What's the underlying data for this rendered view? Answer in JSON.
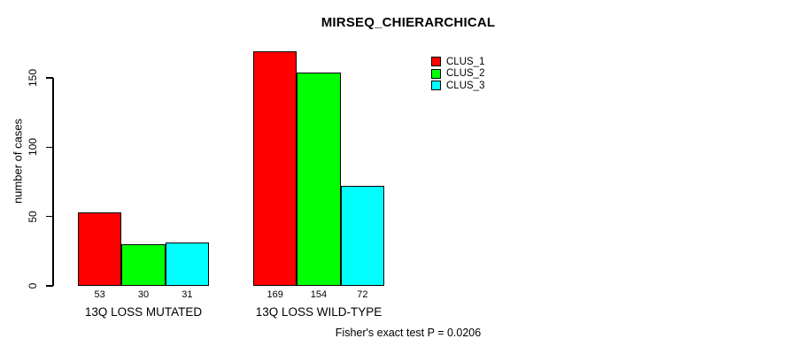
{
  "page": {
    "background": "#ffffff"
  },
  "chart_data": {
    "type": "bar",
    "title": "MIRSEQ_CHIERARCHICAL",
    "ylabel": "number of cases",
    "xlabel": "",
    "categories": [
      "13Q LOSS MUTATED",
      "13Q LOSS WILD-TYPE"
    ],
    "series": [
      {
        "name": "CLUS_1",
        "color": "#ff0000",
        "values": [
          53,
          169
        ]
      },
      {
        "name": "CLUS_2",
        "color": "#00ff00",
        "values": [
          30,
          154
        ]
      },
      {
        "name": "CLUS_3",
        "color": "#00ffff",
        "values": [
          31,
          72
        ]
      }
    ],
    "yticks": [
      0,
      50,
      100,
      150
    ],
    "ylim": [
      0,
      169
    ],
    "grid": false,
    "bar_value_labels": [
      [
        53,
        30,
        31
      ],
      [
        169,
        154,
        72
      ]
    ],
    "legend": {
      "position": "top-right",
      "entries": [
        "CLUS_1",
        "CLUS_2",
        "CLUS_3"
      ]
    },
    "annotation": "Fisher's exact test P = 0.0206"
  }
}
